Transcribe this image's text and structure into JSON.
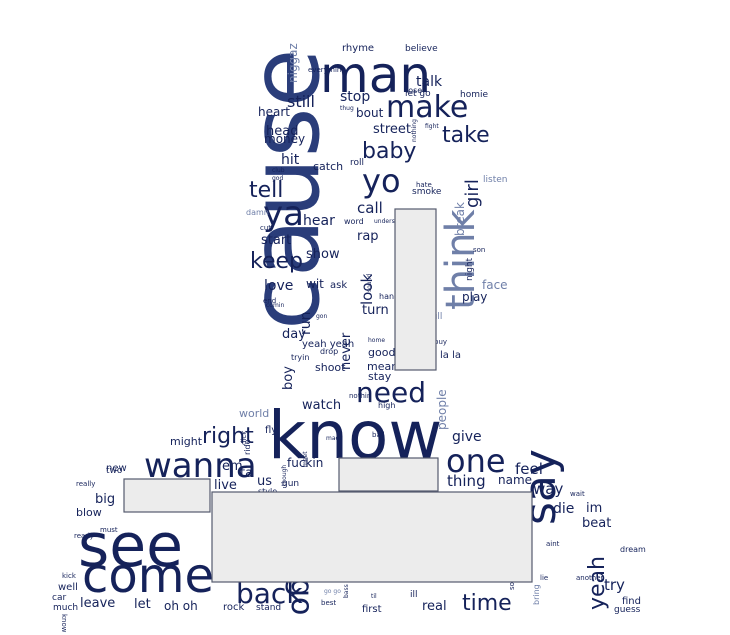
{
  "colors": {
    "background": "#ffffff",
    "dark": "#15225a",
    "mid": "#2a3d7a",
    "light": "#6f7fa8",
    "pale": "#a9b3cc",
    "redaction_fill": "#ececec",
    "redaction_border": "#555b6e"
  },
  "words": [
    {
      "text": "cause",
      "size": 96,
      "color": "mid",
      "rotate": -90
    },
    {
      "text": "know",
      "size": 66,
      "color": "dark",
      "rotate": 0
    },
    {
      "text": "see",
      "size": 60,
      "color": "dark",
      "rotate": 0
    },
    {
      "text": "come",
      "size": 48,
      "color": "dark",
      "rotate": 0
    },
    {
      "text": "man",
      "size": 50,
      "color": "dark",
      "rotate": 0
    },
    {
      "text": "wanna",
      "size": 34,
      "color": "dark",
      "rotate": 0
    },
    {
      "text": "make",
      "size": 30,
      "color": "dark",
      "rotate": 0
    },
    {
      "text": "say",
      "size": 44,
      "color": "dark",
      "rotate": -90
    },
    {
      "text": "think",
      "size": 40,
      "color": "light",
      "rotate": -90
    },
    {
      "text": "ya",
      "size": 34,
      "color": "dark",
      "rotate": 0
    },
    {
      "text": "yo",
      "size": 32,
      "color": "dark",
      "rotate": 0
    },
    {
      "text": "one",
      "size": 32,
      "color": "dark",
      "rotate": 0
    },
    {
      "text": "need",
      "size": 28,
      "color": "dark",
      "rotate": 0
    },
    {
      "text": "back",
      "size": 28,
      "color": "dark",
      "rotate": 0
    },
    {
      "text": "go",
      "size": 30,
      "color": "dark",
      "rotate": 90
    },
    {
      "text": "baby",
      "size": 22,
      "color": "dark",
      "rotate": 0
    },
    {
      "text": "take",
      "size": 22,
      "color": "dark",
      "rotate": 0
    },
    {
      "text": "tell",
      "size": 22,
      "color": "dark",
      "rotate": 0
    },
    {
      "text": "keep",
      "size": 22,
      "color": "dark",
      "rotate": 0
    },
    {
      "text": "right",
      "size": 22,
      "color": "dark",
      "rotate": 0
    },
    {
      "text": "time",
      "size": 22,
      "color": "dark",
      "rotate": 0
    },
    {
      "text": "yeah",
      "size": 22,
      "color": "dark",
      "rotate": -90
    },
    {
      "text": "girl",
      "size": 18,
      "color": "dark",
      "rotate": -90
    },
    {
      "text": "still",
      "size": 16,
      "color": "dark",
      "rotate": 0
    },
    {
      "text": "talk",
      "size": 14,
      "color": "dark",
      "rotate": 0
    },
    {
      "text": "stop",
      "size": 14,
      "color": "dark",
      "rotate": 0
    },
    {
      "text": "heart",
      "size": 12,
      "color": "dark",
      "rotate": 0
    },
    {
      "text": "bout",
      "size": 12,
      "color": "dark",
      "rotate": 0
    },
    {
      "text": "head",
      "size": 13,
      "color": "dark",
      "rotate": 0
    },
    {
      "text": "money",
      "size": 12,
      "color": "dark",
      "rotate": 0
    },
    {
      "text": "street",
      "size": 13,
      "color": "dark",
      "rotate": 0
    },
    {
      "text": "hit",
      "size": 14,
      "color": "dark",
      "rotate": 0
    },
    {
      "text": "catch",
      "size": 11,
      "color": "dark",
      "rotate": 0
    },
    {
      "text": "call",
      "size": 15,
      "color": "dark",
      "rotate": 0
    },
    {
      "text": "hear",
      "size": 14,
      "color": "dark",
      "rotate": 0
    },
    {
      "text": "start",
      "size": 13,
      "color": "dark",
      "rotate": 0
    },
    {
      "text": "rap",
      "size": 13,
      "color": "dark",
      "rotate": 0
    },
    {
      "text": "show",
      "size": 13,
      "color": "dark",
      "rotate": 0
    },
    {
      "text": "love",
      "size": 14,
      "color": "dark",
      "rotate": 0
    },
    {
      "text": "wit",
      "size": 12,
      "color": "dark",
      "rotate": 0
    },
    {
      "text": "ask",
      "size": 10,
      "color": "dark",
      "rotate": 0
    },
    {
      "text": "look",
      "size": 15,
      "color": "dark",
      "rotate": -90
    },
    {
      "text": "run",
      "size": 14,
      "color": "dark",
      "rotate": -90
    },
    {
      "text": "turn",
      "size": 13,
      "color": "dark",
      "rotate": 0
    },
    {
      "text": "day",
      "size": 13,
      "color": "dark",
      "rotate": 0
    },
    {
      "text": "yeah yeah",
      "size": 10,
      "color": "dark",
      "rotate": 0
    },
    {
      "text": "never",
      "size": 13,
      "color": "dark",
      "rotate": -90
    },
    {
      "text": "good",
      "size": 11,
      "color": "dark",
      "rotate": 0
    },
    {
      "text": "mean",
      "size": 11,
      "color": "dark",
      "rotate": 0
    },
    {
      "text": "stay",
      "size": 11,
      "color": "dark",
      "rotate": 0
    },
    {
      "text": "shoot",
      "size": 11,
      "color": "dark",
      "rotate": 0
    },
    {
      "text": "boy",
      "size": 13,
      "color": "dark",
      "rotate": -90
    },
    {
      "text": "watch",
      "size": 13,
      "color": "dark",
      "rotate": 0
    },
    {
      "text": "world",
      "size": 11,
      "color": "light",
      "rotate": 0
    },
    {
      "text": "fly",
      "size": 10,
      "color": "dark",
      "rotate": 0
    },
    {
      "text": "might",
      "size": 11,
      "color": "dark",
      "rotate": 0
    },
    {
      "text": "give",
      "size": 14,
      "color": "dark",
      "rotate": 0
    },
    {
      "text": "people",
      "size": 12,
      "color": "light",
      "rotate": -90
    },
    {
      "text": "feel",
      "size": 15,
      "color": "dark",
      "rotate": 0
    },
    {
      "text": "thing",
      "size": 15,
      "color": "dark",
      "rotate": 0
    },
    {
      "text": "name",
      "size": 12,
      "color": "dark",
      "rotate": 0
    },
    {
      "text": "way",
      "size": 15,
      "color": "dark",
      "rotate": 0
    },
    {
      "text": "die",
      "size": 14,
      "color": "dark",
      "rotate": 0
    },
    {
      "text": "im",
      "size": 13,
      "color": "dark",
      "rotate": 0
    },
    {
      "text": "beat",
      "size": 13,
      "color": "dark",
      "rotate": 0
    },
    {
      "text": "try",
      "size": 15,
      "color": "dark",
      "rotate": 0
    },
    {
      "text": "find",
      "size": 10,
      "color": "dark",
      "rotate": 0
    },
    {
      "text": "guess",
      "size": 9,
      "color": "dark",
      "rotate": 0
    },
    {
      "text": "fuckin",
      "size": 12,
      "color": "dark",
      "rotate": 0
    },
    {
      "text": "em",
      "size": 13,
      "color": "dark",
      "rotate": 0
    },
    {
      "text": "live",
      "size": 13,
      "color": "dark",
      "rotate": 0
    },
    {
      "text": "us",
      "size": 13,
      "color": "dark",
      "rotate": 0
    },
    {
      "text": "gun",
      "size": 9,
      "color": "dark",
      "rotate": 0
    },
    {
      "text": "big",
      "size": 13,
      "color": "dark",
      "rotate": 0
    },
    {
      "text": "two",
      "size": 9,
      "color": "dark",
      "rotate": 0
    },
    {
      "text": "blow",
      "size": 11,
      "color": "dark",
      "rotate": 0
    },
    {
      "text": "let",
      "size": 13,
      "color": "dark",
      "rotate": 0
    },
    {
      "text": "leave",
      "size": 13,
      "color": "dark",
      "rotate": 0
    },
    {
      "text": "oh oh",
      "size": 12,
      "color": "dark",
      "rotate": 0
    },
    {
      "text": "rock",
      "size": 10,
      "color": "dark",
      "rotate": 0
    },
    {
      "text": "stand",
      "size": 9,
      "color": "dark",
      "rotate": 0
    },
    {
      "text": "real",
      "size": 13,
      "color": "dark",
      "rotate": 0
    },
    {
      "text": "first",
      "size": 10,
      "color": "dark",
      "rotate": 0
    },
    {
      "text": "much",
      "size": 9,
      "color": "dark",
      "rotate": 0
    },
    {
      "text": "well",
      "size": 10,
      "color": "dark",
      "rotate": 0
    },
    {
      "text": "car",
      "size": 9,
      "color": "dark",
      "rotate": 0
    },
    {
      "text": "light",
      "size": 9,
      "color": "dark",
      "rotate": 0
    },
    {
      "text": "night",
      "size": 9,
      "color": "dark",
      "rotate": -90
    },
    {
      "text": "play",
      "size": 12,
      "color": "dark",
      "rotate": 0
    },
    {
      "text": "face",
      "size": 12,
      "color": "light",
      "rotate": 0
    },
    {
      "text": "listen",
      "size": 9,
      "color": "light",
      "rotate": 0
    },
    {
      "text": "break",
      "size": 12,
      "color": "light",
      "rotate": -90
    },
    {
      "text": "niggaz",
      "size": 12,
      "color": "light",
      "rotate": -90
    },
    {
      "text": "rhyme",
      "size": 10,
      "color": "dark",
      "rotate": 0
    },
    {
      "text": "believe",
      "size": 9,
      "color": "dark",
      "rotate": 0
    },
    {
      "text": "let go",
      "size": 9,
      "color": "dark",
      "rotate": 0
    },
    {
      "text": "homie",
      "size": 9,
      "color": "dark",
      "rotate": 0
    },
    {
      "text": "roll",
      "size": 9,
      "color": "dark",
      "rotate": 0
    },
    {
      "text": "smoke",
      "size": 9,
      "color": "dark",
      "rotate": 0
    },
    {
      "text": "hate",
      "size": 7,
      "color": "dark",
      "rotate": 0
    },
    {
      "text": "damn",
      "size": 8,
      "color": "light",
      "rotate": 0
    },
    {
      "text": "cut",
      "size": 7,
      "color": "dark",
      "rotate": 0
    },
    {
      "text": "word",
      "size": 8,
      "color": "dark",
      "rotate": 0
    },
    {
      "text": "black",
      "size": 10,
      "color": "dark",
      "rotate": 0
    },
    {
      "text": "son",
      "size": 7,
      "color": "dark",
      "rotate": 0
    },
    {
      "text": "end",
      "size": 7,
      "color": "dark",
      "rotate": 0
    },
    {
      "text": "pull",
      "size": 9,
      "color": "light",
      "rotate": 0
    },
    {
      "text": "hand",
      "size": 8,
      "color": "dark",
      "rotate": 0
    },
    {
      "text": "home",
      "size": 6,
      "color": "dark",
      "rotate": 0
    },
    {
      "text": "drop",
      "size": 8,
      "color": "dark",
      "rotate": 0
    },
    {
      "text": "tryin",
      "size": 8,
      "color": "dark",
      "rotate": 0
    },
    {
      "text": "buy",
      "size": 7,
      "color": "dark",
      "rotate": 0
    },
    {
      "text": "la la",
      "size": 10,
      "color": "dark",
      "rotate": 0
    },
    {
      "text": "high",
      "size": 8,
      "color": "dark",
      "rotate": 0
    },
    {
      "text": "nothin",
      "size": 7,
      "color": "dark",
      "rotate": 0
    },
    {
      "text": "ball",
      "size": 7,
      "color": "dark",
      "rotate": 0
    },
    {
      "text": "mad",
      "size": 6,
      "color": "dark",
      "rotate": 0
    },
    {
      "text": "ride",
      "size": 8,
      "color": "dark",
      "rotate": -90
    },
    {
      "text": "dick",
      "size": 7,
      "color": "dark",
      "rotate": -90
    },
    {
      "text": "new",
      "size": 10,
      "color": "dark",
      "rotate": 0
    },
    {
      "text": "really",
      "size": 7,
      "color": "dark",
      "rotate": 0
    },
    {
      "text": "must",
      "size": 7,
      "color": "dark",
      "rotate": 0
    },
    {
      "text": "ready",
      "size": 7,
      "color": "dark",
      "rotate": 0
    },
    {
      "text": "kick",
      "size": 7,
      "color": "dark",
      "rotate": 0
    },
    {
      "text": "know know",
      "size": 7,
      "color": "dark",
      "rotate": 90
    },
    {
      "text": "wait",
      "size": 7,
      "color": "dark",
      "rotate": 0
    },
    {
      "text": "aint",
      "size": 7,
      "color": "dark",
      "rotate": 0
    },
    {
      "text": "dream",
      "size": 8,
      "color": "dark",
      "rotate": 0
    },
    {
      "text": "another",
      "size": 7,
      "color": "dark",
      "rotate": 0
    },
    {
      "text": "bring",
      "size": 8,
      "color": "light",
      "rotate": -90
    },
    {
      "text": "something",
      "size": 7,
      "color": "dark",
      "rotate": -90
    },
    {
      "text": "lie",
      "size": 7,
      "color": "dark",
      "rotate": 0
    },
    {
      "text": "best",
      "size": 7,
      "color": "dark",
      "rotate": 0
    },
    {
      "text": "ill",
      "size": 9,
      "color": "dark",
      "rotate": 0
    },
    {
      "text": "style",
      "size": 8,
      "color": "dark",
      "rotate": 0
    },
    {
      "text": "everything",
      "size": 7,
      "color": "dark",
      "rotate": 0
    },
    {
      "text": "lose",
      "size": 8,
      "color": "dark",
      "rotate": 0
    },
    {
      "text": "thug",
      "size": 6,
      "color": "dark",
      "rotate": 0
    },
    {
      "text": "fight",
      "size": 6,
      "color": "dark",
      "rotate": 0
    },
    {
      "text": "god",
      "size": 6,
      "color": "dark",
      "rotate": 0
    },
    {
      "text": "club",
      "size": 6,
      "color": "dark",
      "rotate": 0
    },
    {
      "text": "nothing",
      "size": 6,
      "color": "dark",
      "rotate": -90
    },
    {
      "text": "understand",
      "size": 6,
      "color": "dark",
      "rotate": 0
    },
    {
      "text": "sound",
      "size": 6,
      "color": "dark",
      "rotate": -90
    },
    {
      "text": "gon",
      "size": 6,
      "color": "dark",
      "rotate": 0
    },
    {
      "text": "comin",
      "size": 6,
      "color": "dark",
      "rotate": 0
    },
    {
      "text": "meet",
      "size": 6,
      "color": "dark",
      "rotate": -90
    },
    {
      "text": "though",
      "size": 6,
      "color": "dark",
      "rotate": -90
    },
    {
      "text": "go go",
      "size": 6,
      "color": "light",
      "rotate": 0
    },
    {
      "text": "bass",
      "size": 6,
      "color": "dark",
      "rotate": -90
    },
    {
      "text": "til",
      "size": 6,
      "color": "dark",
      "rotate": 0
    },
    {
      "text": "ta",
      "size": 13,
      "color": "dark",
      "rotate": 0
    },
    {
      "text": "gon",
      "size": 13,
      "color": "dark",
      "rotate": 0
    },
    {
      "text": "na",
      "size": 13,
      "color": "dark",
      "rotate": 0
    },
    {
      "text": "na",
      "size": 28,
      "color": "dark",
      "rotate": 0
    },
    {
      "text": "hard",
      "size": 8,
      "color": "dark",
      "rotate": 0
    },
    {
      "text": "hold",
      "size": 8,
      "color": "dark",
      "rotate": 0
    },
    {
      "text": "black",
      "size": 7,
      "color": "dark",
      "rotate": 0
    }
  ]
}
